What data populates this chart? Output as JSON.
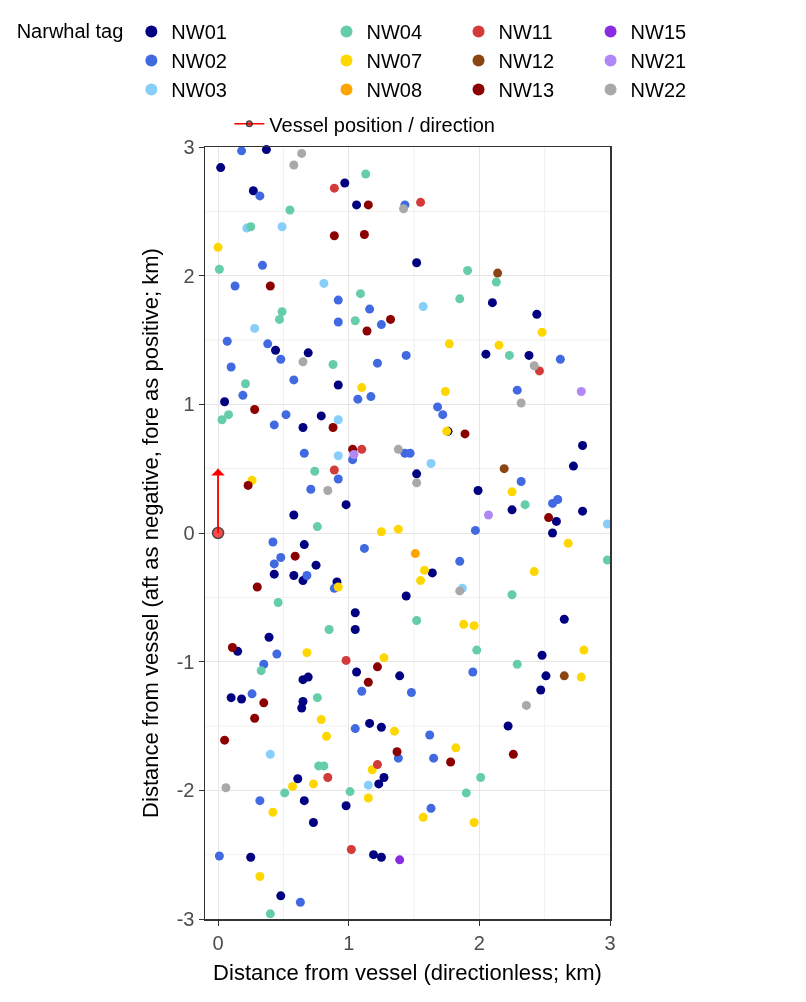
{
  "chart_data": {
    "type": "scatter",
    "xlabel": "Distance from vessel (directionless; km)",
    "ylabel": "Distance from vessel (aft as negative, fore as positive; km)",
    "legend_title": "Narwhal tag",
    "legend": "top",
    "grid": true,
    "marker": "circle",
    "xlim": [
      -0.1,
      3
    ],
    "ylim": [
      -3,
      3
    ],
    "xticks": [
      0,
      1,
      2,
      3
    ],
    "yticks": [
      -3,
      -2,
      -1,
      0,
      1,
      2,
      3
    ],
    "series": [
      {
        "name": "NW01",
        "color": "#000080",
        "x": [
          0.02,
          0.37,
          0.27,
          0.97,
          1.06,
          1.52,
          2.1,
          2.44,
          0.44,
          0.69,
          2.05,
          2.38,
          0.92,
          0.05,
          0.79,
          0.65,
          1.76,
          2.79,
          2.72,
          1.52,
          1.99,
          0.98,
          2.25,
          2.79,
          0.58,
          2.59,
          2.56,
          0.66,
          0.75,
          0.43,
          0.58,
          0.65,
          1.64,
          0.91,
          1.44,
          1.05,
          2.65,
          1.05,
          0.39,
          0.15,
          2.48,
          1.06,
          1.39,
          2.51,
          0.65,
          0.69,
          2.47,
          0.1,
          0.18,
          0.65,
          0.64,
          1.16,
          1.25,
          2.22,
          0.61,
          1.27,
          1.23,
          0.66,
          0.98,
          0.73,
          0.25,
          1.19,
          1.25,
          0.48
        ],
        "values": [
          2.84,
          2.98,
          2.66,
          2.72,
          2.55,
          2.1,
          1.79,
          1.7,
          1.42,
          1.4,
          1.39,
          1.38,
          1.15,
          1.02,
          0.91,
          0.82,
          0.79,
          0.68,
          0.52,
          0.46,
          0.33,
          0.22,
          0.18,
          0.17,
          0.14,
          0.09,
          0.0,
          -0.09,
          -0.25,
          -0.32,
          -0.33,
          -0.37,
          -0.31,
          -0.38,
          -0.49,
          -0.62,
          -0.67,
          -0.75,
          -0.81,
          -0.92,
          -0.95,
          -1.08,
          -1.11,
          -1.11,
          -1.14,
          -1.12,
          -1.22,
          -1.28,
          -1.29,
          -1.31,
          -1.36,
          -1.48,
          -1.51,
          -1.5,
          -1.91,
          -1.9,
          -1.95,
          -2.08,
          -2.12,
          -2.25,
          -2.52,
          -2.5,
          -2.52,
          -2.82
        ]
      },
      {
        "name": "NW02",
        "color": "#4169e1",
        "x": [
          0.18,
          0.32,
          1.43,
          0.34,
          0.13,
          0.92,
          1.16,
          0.92,
          1.25,
          0.07,
          0.38,
          0.48,
          2.62,
          0.1,
          1.22,
          1.44,
          0.58,
          0.19,
          1.07,
          1.17,
          2.29,
          0.52,
          0.43,
          1.68,
          1.72,
          1.43,
          1.47,
          0.66,
          1.03,
          0.92,
          2.32,
          0.71,
          2.56,
          2.6,
          1.97,
          0.42,
          1.12,
          0.48,
          0.43,
          1.85,
          0.68,
          0.89,
          0.45,
          0.35,
          1.95,
          1.1,
          1.48,
          0.26,
          1.05,
          1.62,
          1.38,
          1.65,
          0.32,
          1.63,
          0.01,
          0.63
        ],
        "values": [
          2.97,
          2.62,
          2.55,
          2.08,
          1.92,
          1.81,
          1.74,
          1.64,
          1.62,
          1.49,
          1.47,
          1.35,
          1.35,
          1.29,
          1.32,
          1.38,
          1.19,
          1.07,
          1.04,
          1.06,
          1.11,
          0.92,
          0.84,
          0.98,
          0.92,
          0.62,
          0.62,
          0.62,
          0.57,
          0.42,
          0.4,
          0.34,
          0.23,
          0.26,
          0.02,
          -0.07,
          -0.12,
          -0.19,
          -0.24,
          -0.22,
          -0.33,
          -0.43,
          -0.94,
          -1.02,
          -1.08,
          -1.23,
          -1.24,
          -1.25,
          -1.52,
          -1.57,
          -1.75,
          -1.75,
          -2.08,
          -2.14,
          -2.51,
          -2.87
        ]
      },
      {
        "name": "NW03",
        "color": "#87cefa",
        "x": [
          0.22,
          0.49,
          0.81,
          1.57,
          0.28,
          0.92,
          0.92,
          1.63,
          2.98,
          1.87,
          0.4,
          1.15
        ],
        "values": [
          2.37,
          2.38,
          1.94,
          1.76,
          1.59,
          0.88,
          0.6,
          0.54,
          0.07,
          -0.43,
          -1.72,
          -1.96
        ]
      },
      {
        "name": "NW04",
        "color": "#66cdaa",
        "x": [
          1.13,
          0.55,
          0.25,
          0.01,
          1.91,
          2.13,
          1.09,
          1.85,
          0.49,
          0.47,
          1.05,
          2.23,
          0.88,
          0.21,
          0.03,
          0.08,
          0.74,
          2.35,
          0.76,
          2.98,
          2.25,
          0.46,
          1.52,
          0.85,
          1.98,
          2.29,
          0.33,
          0.76,
          0.77,
          0.81,
          2.01,
          0.51,
          1.01,
          1.9,
          0.4
        ],
        "values": [
          2.79,
          2.51,
          2.38,
          2.05,
          2.04,
          1.95,
          1.86,
          1.82,
          1.72,
          1.66,
          1.65,
          1.38,
          1.31,
          1.16,
          0.88,
          0.92,
          0.48,
          0.22,
          0.05,
          -0.21,
          -0.48,
          -0.54,
          -0.68,
          -0.75,
          -0.91,
          -1.02,
          -1.07,
          -1.28,
          -1.81,
          -1.81,
          -1.9,
          -2.02,
          -2.01,
          -2.02,
          -2.96
        ]
      },
      {
        "name": "NW07",
        "color": "#ffd700",
        "x": [
          0.0,
          2.48,
          1.77,
          2.15,
          1.1,
          1.74,
          1.75,
          0.26,
          2.25,
          1.25,
          1.38,
          2.68,
          1.58,
          2.42,
          1.55,
          0.92,
          1.88,
          1.96,
          0.68,
          2.8,
          1.27,
          2.78,
          0.79,
          1.35,
          0.83,
          1.82,
          1.18,
          0.57,
          0.73,
          1.15,
          0.42,
          1.57,
          1.96,
          0.32
        ],
        "values": [
          2.22,
          1.56,
          1.47,
          1.46,
          1.13,
          1.1,
          0.79,
          0.41,
          0.32,
          0.01,
          0.03,
          -0.08,
          -0.29,
          -0.3,
          -0.37,
          -0.42,
          -0.71,
          -0.72,
          -0.93,
          -0.91,
          -0.97,
          -1.12,
          -1.45,
          -1.54,
          -1.58,
          -1.67,
          -1.84,
          -1.97,
          -1.95,
          -2.06,
          -2.17,
          -2.21,
          -2.25,
          -2.67
        ]
      },
      {
        "name": "NW08",
        "color": "#ffa500",
        "x": [
          1.51
        ],
        "values": [
          -0.16
        ]
      },
      {
        "name": "NW11",
        "color": "#d33b3b",
        "x": [
          0.89,
          1.55,
          2.46,
          1.1,
          0.89,
          0.98,
          1.22,
          0.84,
          1.02
        ],
        "values": [
          2.68,
          2.57,
          1.26,
          0.65,
          0.49,
          -0.99,
          -1.8,
          -1.9,
          -2.46
        ]
      },
      {
        "name": "NW12",
        "color": "#8b4513",
        "x": [
          2.14,
          2.19,
          2.65
        ],
        "values": [
          2.02,
          0.5,
          -1.11
        ]
      },
      {
        "name": "NW13",
        "color": "#8b0000",
        "x": [
          1.15,
          0.89,
          1.12,
          0.4,
          1.32,
          1.14,
          0.28,
          0.88,
          1.89,
          1.03,
          0.23,
          2.53,
          0.59,
          0.3,
          0.11,
          1.22,
          1.15,
          0.35,
          0.28,
          0.05,
          1.37,
          1.78,
          2.26
        ],
        "values": [
          2.55,
          2.31,
          2.32,
          1.92,
          1.66,
          1.57,
          0.96,
          0.82,
          0.77,
          0.65,
          0.37,
          0.12,
          -0.18,
          -0.42,
          -0.89,
          -1.04,
          -1.16,
          -1.32,
          -1.44,
          -1.61,
          -1.7,
          -1.78,
          -1.72
        ]
      },
      {
        "name": "NW15",
        "color": "#8a2be2",
        "x": [
          1.39
        ],
        "values": [
          -2.54
        ]
      },
      {
        "name": "NW21",
        "color": "#b088f5",
        "x": [
          2.78,
          1.04,
          2.07
        ],
        "values": [
          1.1,
          0.61,
          0.14
        ]
      },
      {
        "name": "NW22",
        "color": "#a9a9a9",
        "x": [
          0.58,
          0.64,
          1.42,
          0.65,
          2.42,
          2.32,
          1.38,
          1.52,
          0.84,
          1.85,
          2.36,
          0.06
        ],
        "values": [
          2.86,
          2.95,
          2.52,
          1.33,
          1.3,
          1.01,
          0.65,
          0.39,
          0.33,
          -0.45,
          -1.34,
          -1.98
        ]
      },
      {
        "name": "Vessel position / direction",
        "type": "line",
        "color": "#ff0000",
        "x": [
          0,
          0
        ],
        "values": [
          0,
          0.5
        ]
      }
    ]
  }
}
